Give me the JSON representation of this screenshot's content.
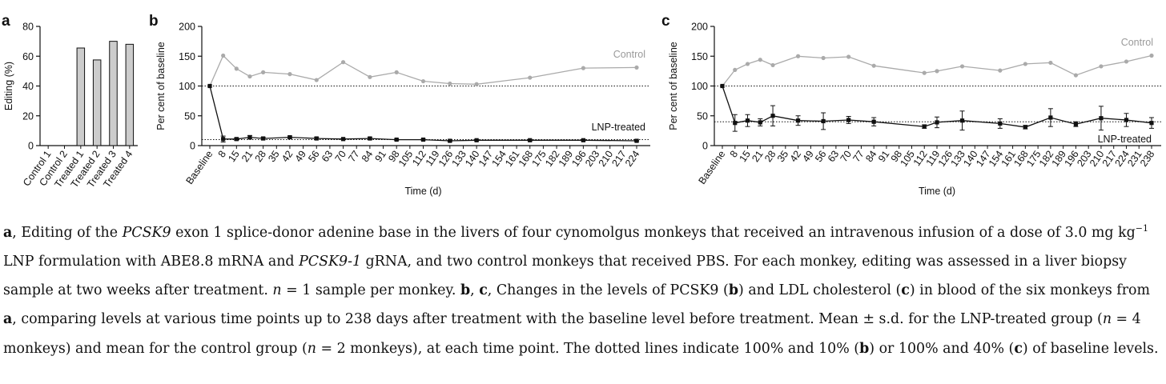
{
  "chart_data": [
    {
      "panel": "a",
      "type": "bar",
      "ylabel": "Editing (%)",
      "ylim": [
        0,
        80
      ],
      "yticks": [
        0,
        20,
        40,
        60,
        80
      ],
      "categories": [
        "Control 1",
        "Control 2",
        "Treated 1",
        "Treated 2",
        "Treated 3",
        "Treated 4"
      ],
      "values": [
        0,
        0,
        65.5,
        57.5,
        70,
        68
      ],
      "bar_color": "#cccccc"
    },
    {
      "panel": "b",
      "type": "line",
      "ylabel": "Per cent of baseline",
      "xlabel": "Time (d)",
      "ylim": [
        0,
        200
      ],
      "yticks": [
        0,
        50,
        100,
        150,
        200
      ],
      "xtick_labels": [
        "Baseline",
        "8",
        "15",
        "21",
        "28",
        "35",
        "42",
        "49",
        "56",
        "63",
        "70",
        "77",
        "84",
        "91",
        "98",
        "105",
        "112",
        "119",
        "126",
        "133",
        "140",
        "147",
        "154",
        "161",
        "168",
        "175",
        "182",
        "189",
        "196",
        "203",
        "210",
        "217",
        "224"
      ],
      "reference_lines": [
        100,
        10
      ],
      "series": [
        {
          "name": "Control",
          "color": "#aaaaaa",
          "x": [
            "Baseline",
            "8",
            "15",
            "21",
            "28",
            "42",
            "56",
            "70",
            "84",
            "98",
            "112",
            "126",
            "140",
            "168",
            "196",
            "224"
          ],
          "y": [
            100,
            151,
            129,
            116,
            123,
            120,
            110,
            140,
            115,
            123,
            108,
            104,
            103,
            114,
            130,
            131
          ]
        },
        {
          "name": "LNP-treated",
          "color": "#111111",
          "x": [
            "Baseline",
            "8",
            "15",
            "21",
            "28",
            "42",
            "56",
            "70",
            "84",
            "98",
            "112",
            "126",
            "140",
            "168",
            "196",
            "224"
          ],
          "y": [
            100,
            11,
            11,
            14,
            12,
            14,
            12,
            11,
            12,
            10,
            10,
            8,
            9,
            9,
            9,
            8
          ],
          "sd": [
            0,
            5,
            2,
            3,
            2,
            2,
            2,
            1,
            2,
            1,
            1,
            1,
            1,
            1,
            1,
            1
          ]
        }
      ]
    },
    {
      "panel": "c",
      "type": "line",
      "ylabel": "Per cent of baseline",
      "xlabel": "Time (d)",
      "ylim": [
        0,
        200
      ],
      "yticks": [
        0,
        50,
        100,
        150,
        200
      ],
      "xtick_labels": [
        "Baseline",
        "8",
        "15",
        "21",
        "28",
        "35",
        "42",
        "49",
        "56",
        "63",
        "70",
        "77",
        "84",
        "91",
        "98",
        "105",
        "112",
        "119",
        "126",
        "133",
        "140",
        "147",
        "154",
        "161",
        "168",
        "175",
        "182",
        "189",
        "196",
        "203",
        "210",
        "217",
        "224",
        "231",
        "238"
      ],
      "reference_lines": [
        100,
        40
      ],
      "series": [
        {
          "name": "Control",
          "color": "#aaaaaa",
          "x": [
            "Baseline",
            "8",
            "15",
            "21",
            "28",
            "42",
            "56",
            "70",
            "84",
            "112",
            "119",
            "133",
            "154",
            "168",
            "182",
            "196",
            "210",
            "224",
            "238"
          ],
          "y": [
            100,
            127,
            137,
            144,
            135,
            150,
            147,
            149,
            134,
            122,
            125,
            133,
            126,
            137,
            139,
            118,
            133,
            141,
            151
          ]
        },
        {
          "name": "LNP-treated",
          "color": "#111111",
          "x": [
            "Baseline",
            "8",
            "15",
            "21",
            "28",
            "42",
            "56",
            "70",
            "84",
            "112",
            "119",
            "133",
            "154",
            "168",
            "182",
            "196",
            "210",
            "224",
            "238"
          ],
          "y": [
            100,
            38,
            42,
            39,
            50,
            42,
            41,
            43,
            40,
            32,
            39,
            42,
            37,
            31,
            47,
            36,
            46,
            43,
            38
          ],
          "sd": [
            0,
            14,
            10,
            6,
            17,
            8,
            14,
            6,
            7,
            3,
            9,
            16,
            8,
            3,
            15,
            4,
            20,
            11,
            9
          ]
        }
      ]
    }
  ],
  "panels": {
    "a": {
      "letter": "a"
    },
    "b": {
      "letter": "b",
      "control_label": "Control",
      "treated_label": "LNP-treated"
    },
    "c": {
      "letter": "c",
      "control_label": "Control",
      "treated_label": "LNP-treated"
    }
  },
  "caption": {
    "bold_a1": "a",
    "t1": ", Editing of the ",
    "gene1": "PCSK9",
    "t2": " exon 1 splice-donor adenine base in the livers of four cynomolgus monkeys that received an intravenous infusion of a dose of 3.0 mg kg",
    "sup": "−1",
    "t3": " LNP formulation with ABE8.8 mRNA and ",
    "gene2": "PCSK9-1",
    "t4": " gRNA, and two control monkeys that received PBS. For each monkey, editing was assessed in a liver biopsy sample at two weeks after treatment. ",
    "n1": "n",
    "t5": " = 1 sample per monkey. ",
    "bold_b": "b",
    "t6": ", ",
    "bold_c": "c",
    "t7": ", Changes in the levels of PCSK9 (",
    "bold_b2": "b",
    "t8": ") and LDL cholesterol (",
    "bold_c2": "c",
    "t9": ") in blood of the six monkeys from ",
    "bold_a2": "a",
    "t10": ", comparing levels at various time points up to 238 days after treatment with the baseline level before treatment. Mean ± s.d. for the LNP-treated group (",
    "n2": "n",
    "t11": " = 4 monkeys) and mean for the control group (",
    "n3": "n",
    "t12": " = 2 monkeys), at each time point. The dotted lines indicate 100% and 10% (",
    "bold_b3": "b",
    "t13": ") or 100% and 40% (",
    "bold_c3": "c",
    "t14": ") of baseline levels."
  }
}
